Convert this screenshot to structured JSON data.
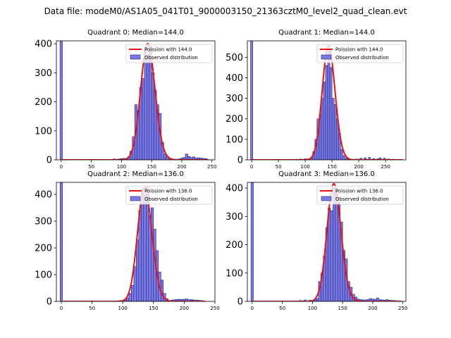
{
  "figure": {
    "suptitle": "Data file: modeM0/AS1A05_041T01_9000003150_21363cztM0_level2_quad_clean.evt"
  },
  "colors": {
    "bar_fill": "#7b7be6",
    "bar_edge": "#1f1f7a",
    "curve": "#ee1111"
  },
  "chart_data": [
    {
      "type": "bar",
      "title": "Quadrant 0: Median=144.0",
      "xlim": [
        -8,
        255
      ],
      "ylim": [
        0,
        410
      ],
      "xticks": [
        0,
        50,
        100,
        150,
        200,
        250
      ],
      "yticks": [
        0,
        100,
        200,
        300,
        400
      ],
      "bin_width": 4,
      "zero_bin": {
        "x": 0,
        "value": 410
      },
      "bins": [
        [
          88,
          3
        ],
        [
          92,
          2
        ],
        [
          96,
          3
        ],
        [
          100,
          4
        ],
        [
          104,
          5
        ],
        [
          108,
          2
        ],
        [
          112,
          10
        ],
        [
          116,
          30
        ],
        [
          120,
          80
        ],
        [
          124,
          190
        ],
        [
          128,
          170
        ],
        [
          132,
          250
        ],
        [
          136,
          280
        ],
        [
          140,
          385
        ],
        [
          144,
          360
        ],
        [
          148,
          390
        ],
        [
          152,
          300
        ],
        [
          156,
          240
        ],
        [
          160,
          190
        ],
        [
          164,
          160
        ],
        [
          168,
          60
        ],
        [
          172,
          20
        ],
        [
          176,
          10
        ],
        [
          180,
          5
        ],
        [
          184,
          3
        ],
        [
          188,
          2
        ],
        [
          196,
          3
        ],
        [
          200,
          6
        ],
        [
          204,
          8
        ],
        [
          208,
          20
        ],
        [
          212,
          12
        ],
        [
          216,
          8
        ],
        [
          220,
          10
        ],
        [
          224,
          6
        ],
        [
          228,
          7
        ],
        [
          232,
          6
        ],
        [
          236,
          5
        ],
        [
          240,
          4
        ]
      ],
      "poisson_mean": 144,
      "curve_peak": 400,
      "curve_range": [
        0,
        245
      ],
      "legend": [
        "Poission with 144.0",
        "Observed distribution"
      ]
    },
    {
      "type": "bar",
      "title": "Quadrant 1: Median=144.0",
      "xlim": [
        -8,
        288
      ],
      "ylim": [
        0,
        580
      ],
      "xticks": [
        0,
        50,
        100,
        150,
        200,
        250
      ],
      "yticks": [
        0,
        100,
        200,
        300,
        400,
        500
      ],
      "bin_width": 4,
      "zero_bin": {
        "x": 0,
        "value": 580
      },
      "bins": [
        [
          84,
          3
        ],
        [
          92,
          4
        ],
        [
          100,
          5
        ],
        [
          104,
          4
        ],
        [
          112,
          10
        ],
        [
          116,
          40
        ],
        [
          120,
          100
        ],
        [
          124,
          200
        ],
        [
          128,
          220
        ],
        [
          132,
          300
        ],
        [
          136,
          380
        ],
        [
          140,
          460
        ],
        [
          144,
          540
        ],
        [
          148,
          450
        ],
        [
          152,
          300
        ],
        [
          156,
          270
        ],
        [
          160,
          200
        ],
        [
          164,
          130
        ],
        [
          168,
          50
        ],
        [
          172,
          20
        ],
        [
          176,
          8
        ],
        [
          180,
          5
        ],
        [
          184,
          4
        ],
        [
          196,
          4
        ],
        [
          204,
          8
        ],
        [
          212,
          10
        ],
        [
          220,
          12
        ],
        [
          228,
          6
        ],
        [
          236,
          5
        ],
        [
          240,
          10
        ],
        [
          248,
          8
        ],
        [
          256,
          4
        ],
        [
          264,
          3
        ],
        [
          272,
          2
        ]
      ],
      "poisson_mean": 144,
      "curve_peak": 555,
      "curve_range": [
        0,
        282
      ],
      "legend": [
        "Poission with 144.0",
        "Observed distribution"
      ]
    },
    {
      "type": "bar",
      "title": "Quadrant 2: Median=136.0",
      "xlim": [
        -8,
        250
      ],
      "ylim": [
        0,
        445
      ],
      "xticks": [
        0,
        50,
        100,
        150,
        200,
        250
      ],
      "yticks": [
        0,
        100,
        200,
        300,
        400
      ],
      "bin_width": 4,
      "zero_bin": {
        "x": 0,
        "value": 445
      },
      "bins": [
        [
          92,
          2
        ],
        [
          96,
          3
        ],
        [
          100,
          4
        ],
        [
          104,
          5
        ],
        [
          108,
          12
        ],
        [
          112,
          30
        ],
        [
          116,
          60
        ],
        [
          120,
          130
        ],
        [
          124,
          230
        ],
        [
          128,
          340
        ],
        [
          132,
          420
        ],
        [
          136,
          400
        ],
        [
          140,
          430
        ],
        [
          144,
          320
        ],
        [
          148,
          350
        ],
        [
          152,
          270
        ],
        [
          156,
          190
        ],
        [
          160,
          110
        ],
        [
          164,
          80
        ],
        [
          168,
          30
        ],
        [
          172,
          10
        ],
        [
          180,
          5
        ],
        [
          184,
          6
        ],
        [
          188,
          7
        ],
        [
          192,
          8
        ],
        [
          196,
          7
        ],
        [
          200,
          8
        ],
        [
          204,
          9
        ],
        [
          208,
          6
        ],
        [
          212,
          7
        ],
        [
          216,
          5
        ],
        [
          220,
          5
        ],
        [
          224,
          4
        ],
        [
          228,
          3
        ]
      ],
      "poisson_mean": 136,
      "curve_peak": 425,
      "curve_range": [
        0,
        235
      ],
      "legend": [
        "Poission with 136.0",
        "Observed distribution"
      ]
    },
    {
      "type": "bar",
      "title": "Quadrant 3: Median=136.0",
      "xlim": [
        -8,
        255
      ],
      "ylim": [
        0,
        420
      ],
      "xticks": [
        0,
        50,
        100,
        150,
        200,
        250
      ],
      "yticks": [
        0,
        100,
        200,
        300,
        400
      ],
      "bin_width": 4,
      "zero_bin": {
        "x": 0,
        "value": 420
      },
      "bins": [
        [
          72,
          2
        ],
        [
          80,
          3
        ],
        [
          88,
          5
        ],
        [
          96,
          4
        ],
        [
          104,
          6
        ],
        [
          108,
          10
        ],
        [
          112,
          70
        ],
        [
          116,
          100
        ],
        [
          120,
          160
        ],
        [
          124,
          260
        ],
        [
          128,
          330
        ],
        [
          132,
          320
        ],
        [
          136,
          400
        ],
        [
          140,
          390
        ],
        [
          144,
          350
        ],
        [
          148,
          280
        ],
        [
          152,
          180
        ],
        [
          156,
          150
        ],
        [
          160,
          70
        ],
        [
          164,
          50
        ],
        [
          168,
          25
        ],
        [
          172,
          15
        ],
        [
          176,
          8
        ],
        [
          180,
          6
        ],
        [
          184,
          5
        ],
        [
          188,
          5
        ],
        [
          192,
          6
        ],
        [
          196,
          10
        ],
        [
          200,
          8
        ],
        [
          204,
          7
        ],
        [
          208,
          12
        ],
        [
          212,
          6
        ],
        [
          216,
          5
        ],
        [
          220,
          5
        ],
        [
          224,
          6
        ],
        [
          228,
          4
        ],
        [
          232,
          3
        ],
        [
          236,
          3
        ],
        [
          240,
          2
        ],
        [
          244,
          2
        ]
      ],
      "poisson_mean": 136,
      "curve_peak": 415,
      "curve_range": [
        0,
        248
      ],
      "legend": [
        "Poission with 136.0",
        "Observed distribution"
      ]
    }
  ]
}
